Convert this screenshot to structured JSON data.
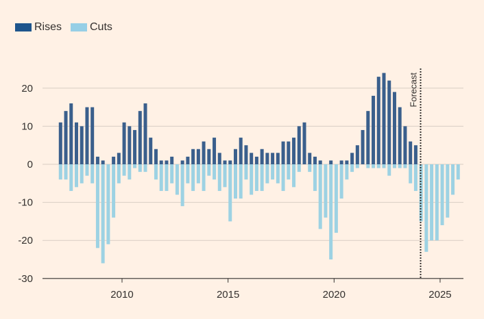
{
  "chart_data": {
    "type": "bar",
    "legend": [
      {
        "label": "Rises",
        "color": "#1e558c"
      },
      {
        "label": "Cuts",
        "color": "#96cfe6"
      }
    ],
    "ylim": [
      -30,
      27
    ],
    "yticks": [
      20,
      10,
      0,
      -10,
      -20,
      -30
    ],
    "yticks_labels": [
      "20",
      "10",
      "0",
      "-10",
      "-20",
      "-30"
    ],
    "xticks": [
      2010,
      2015,
      2020,
      2025
    ],
    "xticks_labels": [
      "2010",
      "2015",
      "2020",
      "2025"
    ],
    "xlim": [
      2006.25,
      2026.1
    ],
    "quarter_spacing": 0.25,
    "x_start": 2007.1,
    "forecast_x": 2024.08,
    "forecast_label": "Forecast",
    "grid": "horizontal",
    "rises": [
      11,
      14,
      16,
      11,
      10,
      15,
      15,
      2,
      1,
      0,
      2,
      3,
      11,
      10,
      9,
      14,
      16,
      7,
      4,
      1,
      1,
      2,
      0,
      1,
      2,
      4,
      4,
      6,
      4,
      7,
      3,
      1,
      1,
      4,
      7,
      5,
      3,
      2,
      4,
      3,
      3,
      3,
      6,
      6,
      7,
      10,
      11,
      3,
      2,
      1,
      0,
      1,
      0,
      1,
      1,
      3,
      5,
      9,
      14,
      18,
      23,
      24,
      22,
      19,
      15,
      10,
      6,
      5,
      0,
      0,
      0,
      0,
      0,
      0,
      0,
      0
    ],
    "cuts": [
      -4,
      -4,
      -7,
      -6,
      -5,
      -3,
      -5,
      -22,
      -26,
      -21,
      -14,
      -5,
      -3,
      -4,
      -1,
      -2,
      -2,
      0,
      -4,
      -7,
      -7,
      -5,
      -8,
      -11,
      -5,
      -7,
      -5,
      -7,
      -3,
      -4,
      -7,
      -6,
      -15,
      -9,
      -9,
      -4,
      -8,
      -7,
      -7,
      -5,
      -4,
      -5,
      -7,
      -4,
      -6,
      -2,
      0,
      -2,
      -7,
      -17,
      -14,
      -25,
      -18,
      -9,
      -4,
      -2,
      -1,
      0,
      -1,
      -1,
      -1,
      -1,
      -3,
      -1,
      -1,
      -1,
      -5,
      -7,
      -15,
      -23,
      -20,
      -20,
      -16,
      -14,
      -8,
      -4
    ]
  }
}
